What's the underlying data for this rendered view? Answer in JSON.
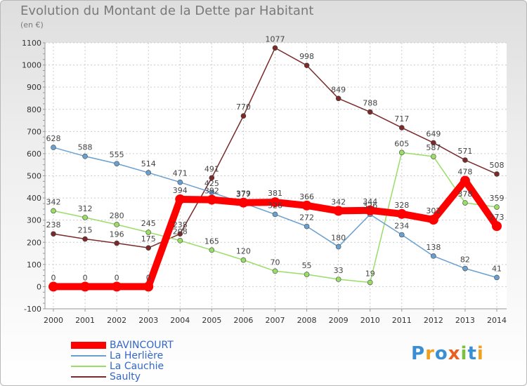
{
  "title": "Evolution du Montant de la Dette par Habitant",
  "subtitle": "(en €)",
  "logo": {
    "text": "Proxiti",
    "letters": [
      "P",
      "r",
      "o",
      "x",
      "i",
      "t",
      "i"
    ],
    "colors": [
      "#3a8fd4",
      "#f0a020",
      "#3a8fd4",
      "#e86020",
      "#7cc040",
      "#3a8fd4",
      "#f0a020"
    ]
  },
  "chart_data": {
    "type": "line",
    "title": "Evolution du Montant de la Dette par Habitant",
    "ylabel": "(en €)",
    "xlabel": "",
    "ylim": [
      -100,
      1100
    ],
    "yticks": [
      "-100",
      "0",
      "100",
      "200",
      "300",
      "400",
      "500",
      "600",
      "700",
      "800",
      "900",
      "1000",
      "1100"
    ],
    "categories": [
      "2000",
      "2001",
      "2002",
      "2003",
      "2004",
      "2005",
      "2006",
      "2007",
      "2008",
      "2009",
      "2010",
      "2011",
      "2012",
      "2013",
      "2014"
    ],
    "grid": true,
    "legend_position": "bottom-left",
    "series": [
      {
        "name": "BAVINCOURT",
        "color": "#ff0000",
        "values": [
          0,
          0,
          0,
          0,
          394,
          392,
          379,
          381,
          366,
          342,
          344,
          328,
          302,
          478,
          273
        ],
        "labels": [
          "0",
          "0",
          "0",
          "0",
          "394",
          "392",
          "379",
          "381",
          "366",
          "342",
          "344",
          "328",
          "302",
          "478",
          "273"
        ]
      },
      {
        "name": "La Herlière",
        "color": "#6aa0d0",
        "values": [
          628,
          588,
          555,
          514,
          471,
          425,
          377,
          326,
          272,
          180,
          326,
          234,
          138,
          82,
          41
        ],
        "labels": [
          "628",
          "588",
          "555",
          "514",
          "471",
          "425",
          "377",
          "326",
          "272",
          "180",
          "326",
          "234",
          "138",
          "82",
          "41"
        ]
      },
      {
        "name": "La Cauchie",
        "color": "#99dd66",
        "values": [
          342,
          312,
          280,
          245,
          208,
          165,
          120,
          70,
          55,
          33,
          19,
          605,
          587,
          378,
          359
        ],
        "labels": [
          "342",
          "312",
          "280",
          "245",
          "208",
          "165",
          "120",
          "70",
          "55",
          "33",
          "19",
          "605",
          "587",
          "378",
          "359"
        ]
      },
      {
        "name": "Saulty",
        "color": "#7a2a2a",
        "values": [
          238,
          215,
          196,
          175,
          238,
          491,
          770,
          1077,
          998,
          849,
          788,
          717,
          649,
          571,
          508
        ],
        "labels": [
          "238",
          "215",
          "196",
          "175",
          "238",
          "491",
          "770",
          "1077",
          "998",
          "849",
          "788",
          "717",
          "649",
          "571",
          "508"
        ]
      }
    ]
  }
}
